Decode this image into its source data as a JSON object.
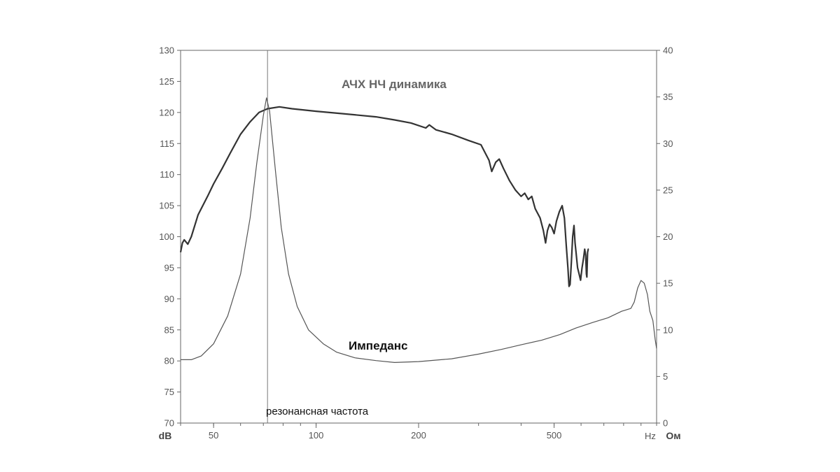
{
  "chart_data": {
    "type": "line",
    "title": "АЧХ НЧ динамика",
    "x_scale": "log",
    "xlim": [
      40,
      1000
    ],
    "x_ticks": [
      {
        "value": 50,
        "label": "50"
      },
      {
        "value": 100,
        "label": "100"
      },
      {
        "value": 200,
        "label": "200"
      },
      {
        "value": 500,
        "label": "500"
      }
    ],
    "x_unit_label": "Hz",
    "y_left": {
      "unit_label": "dB",
      "lim": [
        70,
        130
      ],
      "ticks": [
        70,
        75,
        80,
        85,
        90,
        95,
        100,
        105,
        110,
        115,
        120,
        125,
        130
      ]
    },
    "y_right": {
      "unit_label": "Ом",
      "lim": [
        0,
        40
      ],
      "ticks": [
        0,
        5,
        10,
        15,
        20,
        25,
        30,
        35,
        40
      ]
    },
    "grid": false,
    "series": [
      {
        "key": "spl",
        "axis": "left",
        "color": "#333333",
        "points": [
          [
            40,
            97.5
          ],
          [
            40.5,
            99
          ],
          [
            41,
            99.5
          ],
          [
            42,
            98.8
          ],
          [
            43,
            100
          ],
          [
            45,
            103.5
          ],
          [
            48,
            106.5
          ],
          [
            50,
            108.5
          ],
          [
            53,
            111
          ],
          [
            56,
            113.5
          ],
          [
            60,
            116.5
          ],
          [
            64,
            118.5
          ],
          [
            68,
            120
          ],
          [
            72,
            120.6
          ],
          [
            78,
            120.9
          ],
          [
            85,
            120.6
          ],
          [
            100,
            120.2
          ],
          [
            120,
            119.8
          ],
          [
            150,
            119.3
          ],
          [
            170,
            118.8
          ],
          [
            190,
            118.3
          ],
          [
            210,
            117.5
          ],
          [
            215,
            118
          ],
          [
            225,
            117.2
          ],
          [
            250,
            116.5
          ],
          [
            280,
            115.5
          ],
          [
            305,
            114.8
          ],
          [
            315,
            113.3
          ],
          [
            322,
            112.3
          ],
          [
            328,
            110.5
          ],
          [
            337,
            112
          ],
          [
            345,
            112.5
          ],
          [
            355,
            111
          ],
          [
            370,
            109
          ],
          [
            385,
            107.5
          ],
          [
            400,
            106.5
          ],
          [
            410,
            107
          ],
          [
            420,
            106
          ],
          [
            430,
            106.5
          ],
          [
            440,
            104.5
          ],
          [
            455,
            103
          ],
          [
            465,
            101
          ],
          [
            472,
            99
          ],
          [
            478,
            101
          ],
          [
            485,
            102
          ],
          [
            492,
            101.5
          ],
          [
            500,
            100.5
          ],
          [
            508,
            102.5
          ],
          [
            518,
            104
          ],
          [
            528,
            105
          ],
          [
            536,
            103
          ],
          [
            543,
            98.5
          ],
          [
            549,
            95
          ],
          [
            553,
            92
          ],
          [
            557,
            92.3
          ],
          [
            562,
            96
          ],
          [
            567,
            100
          ],
          [
            572,
            101.8
          ],
          [
            576,
            99
          ],
          [
            580,
            97.5
          ],
          [
            586,
            95
          ],
          [
            592,
            94
          ],
          [
            598,
            93
          ],
          [
            604,
            95
          ],
          [
            610,
            96.5
          ],
          [
            615,
            98
          ],
          [
            619,
            97
          ],
          [
            622,
            94
          ],
          [
            624,
            93.5
          ],
          [
            627,
            97.5
          ],
          [
            630,
            98
          ],
          [
            632,
            98
          ]
        ]
      },
      {
        "key": "impedance",
        "axis": "right",
        "color": "#555555",
        "points": [
          [
            40,
            6.8
          ],
          [
            43,
            6.8
          ],
          [
            46,
            7.2
          ],
          [
            50,
            8.5
          ],
          [
            55,
            11.5
          ],
          [
            60,
            16
          ],
          [
            64,
            22
          ],
          [
            67,
            28
          ],
          [
            70,
            33
          ],
          [
            71.5,
            34.9
          ],
          [
            73,
            33.5
          ],
          [
            76,
            27
          ],
          [
            79,
            21
          ],
          [
            83,
            16
          ],
          [
            88,
            12.5
          ],
          [
            95,
            10
          ],
          [
            105,
            8.5
          ],
          [
            115,
            7.6
          ],
          [
            130,
            7.0
          ],
          [
            150,
            6.7
          ],
          [
            170,
            6.5
          ],
          [
            200,
            6.6
          ],
          [
            250,
            6.9
          ],
          [
            300,
            7.4
          ],
          [
            350,
            7.9
          ],
          [
            400,
            8.4
          ],
          [
            460,
            8.9
          ],
          [
            520,
            9.5
          ],
          [
            580,
            10.2
          ],
          [
            650,
            10.8
          ],
          [
            720,
            11.3
          ],
          [
            790,
            12.0
          ],
          [
            840,
            12.3
          ],
          [
            860,
            13.0
          ],
          [
            880,
            14.5
          ],
          [
            900,
            15.3
          ],
          [
            920,
            15.0
          ],
          [
            940,
            13.8
          ],
          [
            955,
            12.0
          ],
          [
            975,
            11.0
          ],
          [
            990,
            9.0
          ],
          [
            1000,
            8.0
          ]
        ]
      }
    ],
    "annotations": [
      {
        "key": "impedance_label",
        "text": "Импеданс"
      },
      {
        "key": "resonance_label",
        "text": "резонансная частота",
        "x": 72
      }
    ]
  }
}
